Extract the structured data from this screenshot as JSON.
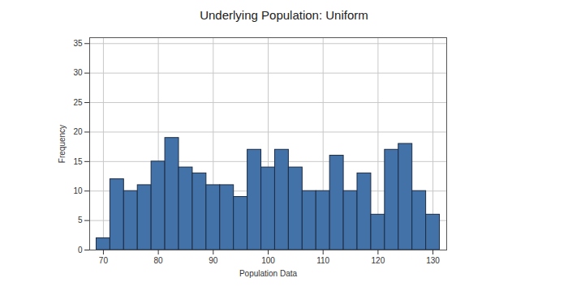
{
  "chart_data": {
    "type": "histogram",
    "title": "Underlying Population: Uniform",
    "x_label": "Population Data",
    "y_label": "Frequency",
    "bins": [
      68.75,
      71.25,
      73.75,
      76.25,
      78.75,
      81.25,
      83.75,
      86.25,
      88.75,
      91.25,
      93.75,
      96.25,
      98.75,
      101.25,
      103.75,
      106.25,
      108.75,
      111.25,
      113.75,
      116.25,
      118.75,
      121.25,
      123.75,
      126.25,
      128.75,
      131.25
    ],
    "values": [
      2,
      12,
      10,
      11,
      15,
      19,
      14,
      13,
      11,
      11,
      9,
      17,
      14,
      17,
      14,
      10,
      10,
      16,
      10,
      13,
      6,
      17,
      18,
      10,
      6
    ],
    "color": "#4272a8",
    "xlim": [
      67.5,
      132.5
    ],
    "xticks": [
      70,
      80,
      90,
      100,
      110,
      120,
      130
    ],
    "ylim": [
      0,
      36
    ],
    "yticks": [
      0,
      5,
      10,
      15,
      20,
      25,
      30,
      35
    ],
    "grid": true
  }
}
